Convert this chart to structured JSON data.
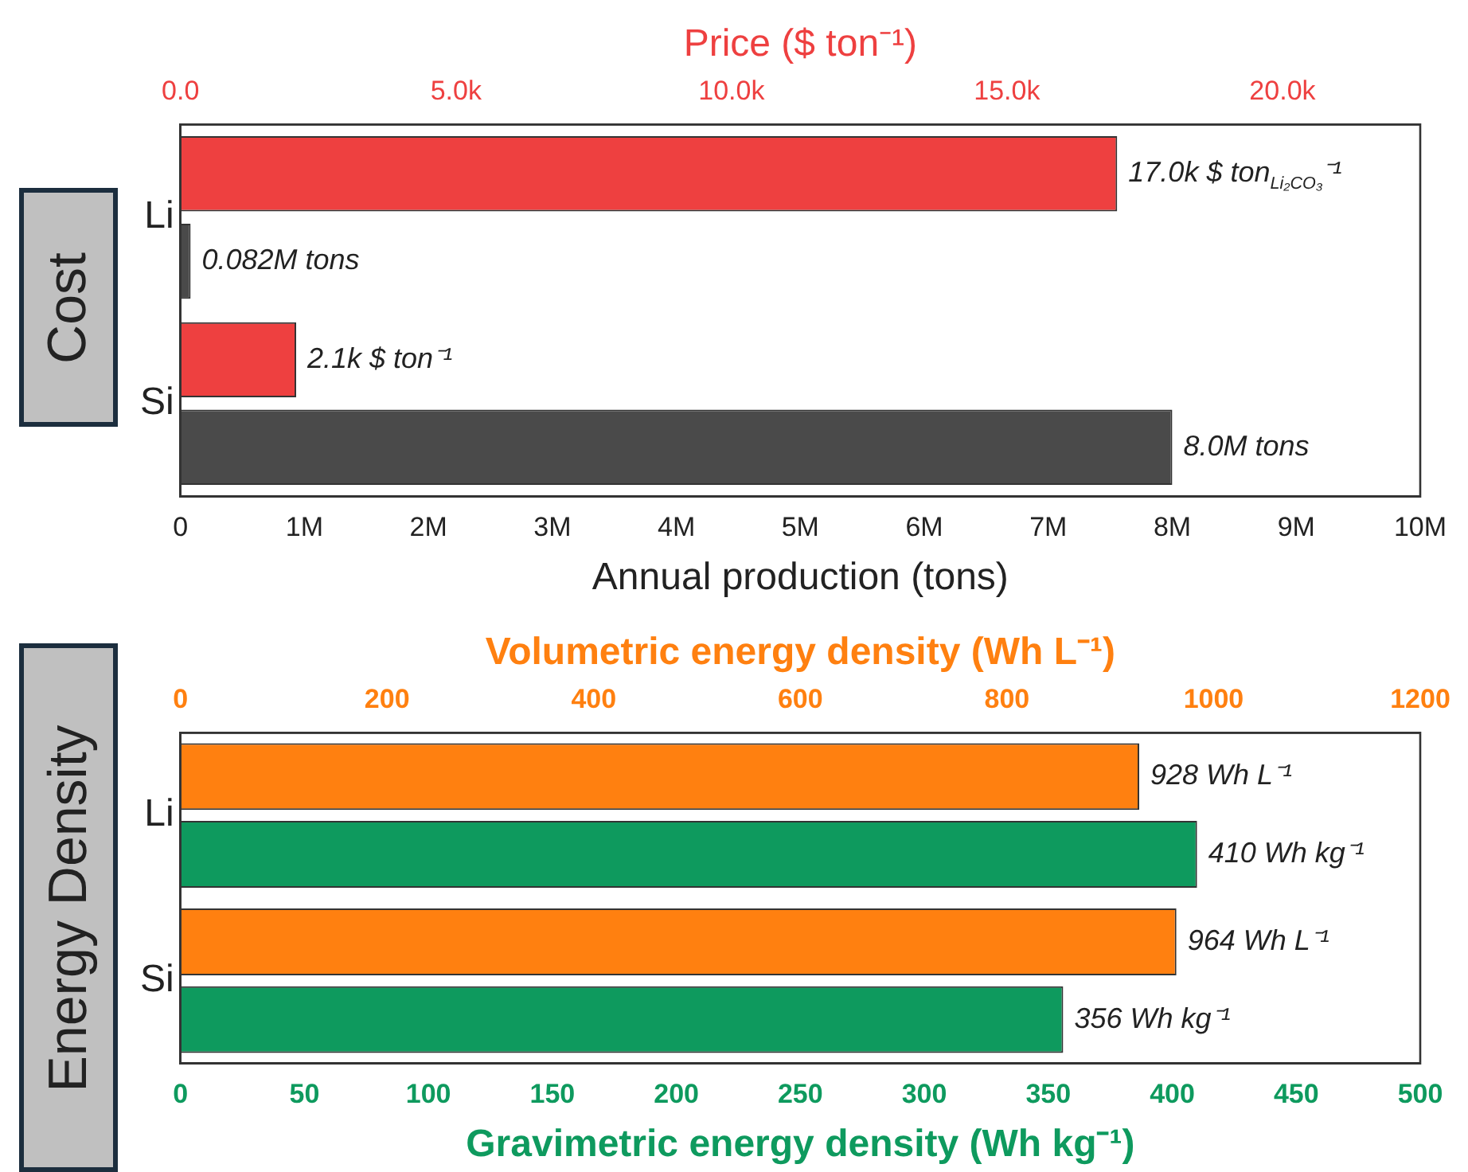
{
  "chart_data": [
    {
      "type": "bar",
      "orientation": "horizontal",
      "title": "Cost",
      "categories": [
        "Li",
        "Si"
      ],
      "xlabel": "Annual production (tons)",
      "x2label": "Price ($ ton⁻¹)",
      "xlim": [
        0,
        10000000
      ],
      "xticks": [
        {
          "value": 0,
          "label": "0"
        },
        {
          "value": 1000000,
          "label": "1M"
        },
        {
          "value": 2000000,
          "label": "2M"
        },
        {
          "value": 3000000,
          "label": "3M"
        },
        {
          "value": 4000000,
          "label": "4M"
        },
        {
          "value": 5000000,
          "label": "5M"
        },
        {
          "value": 6000000,
          "label": "6M"
        },
        {
          "value": 7000000,
          "label": "7M"
        },
        {
          "value": 8000000,
          "label": "8M"
        },
        {
          "value": 9000000,
          "label": "9M"
        },
        {
          "value": 10000000,
          "label": "10M"
        }
      ],
      "x2lim": [
        0,
        22500
      ],
      "x2ticks": [
        {
          "value": 0,
          "label": "0.0"
        },
        {
          "value": 5000,
          "label": "5.0k"
        },
        {
          "value": 10000,
          "label": "10.0k"
        },
        {
          "value": 15000,
          "label": "15.0k"
        },
        {
          "value": 20000,
          "label": "20.0k"
        }
      ],
      "series": [
        {
          "axis": "x2",
          "color": "#ee4040",
          "values": [
            17000,
            2100
          ],
          "value_labels": [
            "17.0k $ ton$_{Li₂CO₃}$⁻¹",
            "2.1k $ ton⁻¹"
          ]
        },
        {
          "color": "#4a4a4a",
          "values": [
            82000,
            8000000
          ],
          "value_labels": [
            "0.082M tons",
            "8.0M tons"
          ]
        }
      ],
      "grid": false,
      "legend": false
    },
    {
      "type": "bar",
      "orientation": "horizontal",
      "title": "Energy Density",
      "categories": [
        "Li",
        "Si"
      ],
      "xlabel": "Gravimetric energy density (Wh kg⁻¹)",
      "x2label": "Volumetric energy density (Wh L⁻¹)",
      "xlim": [
        0,
        500
      ],
      "xticks": [
        0,
        50,
        100,
        150,
        200,
        250,
        300,
        350,
        400,
        450,
        500
      ],
      "x2lim": [
        0,
        1200
      ],
      "x2ticks": [
        0,
        200,
        400,
        600,
        800,
        1000,
        1200
      ],
      "series": [
        {
          "axis": "x2",
          "color": "#ff8010",
          "values": [
            928,
            964
          ],
          "value_labels": [
            "928 Wh L⁻¹",
            "964 Wh L⁻¹"
          ]
        },
        {
          "color": "#0e9a5e",
          "values": [
            410,
            356
          ],
          "value_labels": [
            "410 Wh kg⁻¹",
            "356 Wh kg⁻¹"
          ]
        }
      ],
      "grid": false,
      "legend": false
    }
  ]
}
